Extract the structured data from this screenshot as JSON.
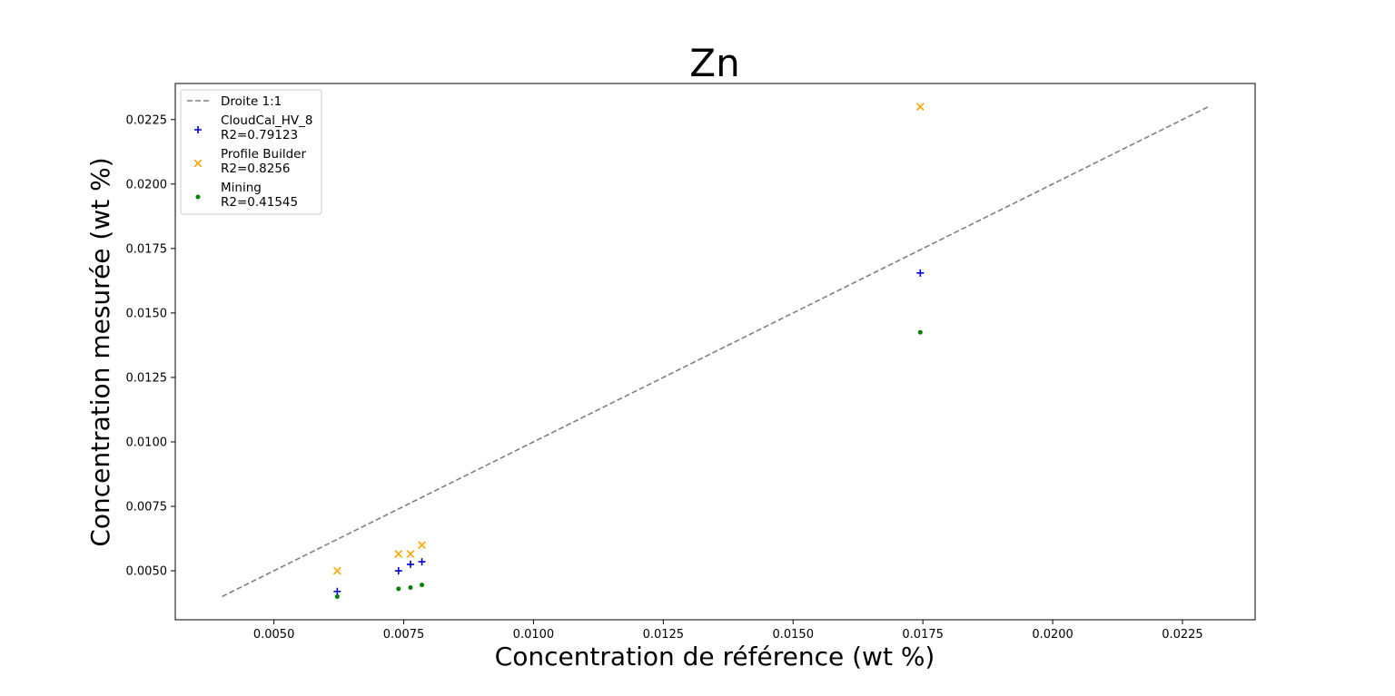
{
  "chart_data": {
    "type": "scatter",
    "title": "Zn",
    "xlabel": "Concentration de référence (wt %)",
    "ylabel": "Concentration mesurée (wt %)",
    "xlim": [
      0.0031,
      0.0239
    ],
    "ylim": [
      0.0031,
      0.0239
    ],
    "x_ticks": [
      "0.0050",
      "0.0075",
      "0.0100",
      "0.0125",
      "0.0150",
      "0.0175",
      "0.0200",
      "0.0225"
    ],
    "y_ticks": [
      "0.0050",
      "0.0075",
      "0.0100",
      "0.0125",
      "0.0150",
      "0.0175",
      "0.0200",
      "0.0225"
    ],
    "grid": false,
    "legend_position": "top-left",
    "reference_line": {
      "name": "Droite 1:1",
      "x": [
        0.004,
        0.023
      ],
      "y": [
        0.004,
        0.023
      ],
      "color": "#808080",
      "style": "dashed"
    },
    "series": [
      {
        "name": "CloudCal_HV_8",
        "r2_label": "R2=0.79123",
        "marker": "plus",
        "color": "#0000cc",
        "x": [
          0.00622,
          0.0074,
          0.00763,
          0.00785,
          0.01745
        ],
        "y": [
          0.0042,
          0.005,
          0.00525,
          0.00535,
          0.01655
        ]
      },
      {
        "name": "Profile Builder",
        "r2_label": "R2=0.8256",
        "marker": "x",
        "color": "#ffa500",
        "x": [
          0.00622,
          0.0074,
          0.00763,
          0.00785,
          0.01745
        ],
        "y": [
          0.005,
          0.00565,
          0.00565,
          0.006,
          0.023
        ]
      },
      {
        "name": "Mining",
        "r2_label": "R2=0.41545",
        "marker": "dot",
        "color": "#008000",
        "x": [
          0.00622,
          0.0074,
          0.00763,
          0.00785,
          0.01745
        ],
        "y": [
          0.004,
          0.0043,
          0.00435,
          0.00445,
          0.01425
        ]
      }
    ]
  }
}
